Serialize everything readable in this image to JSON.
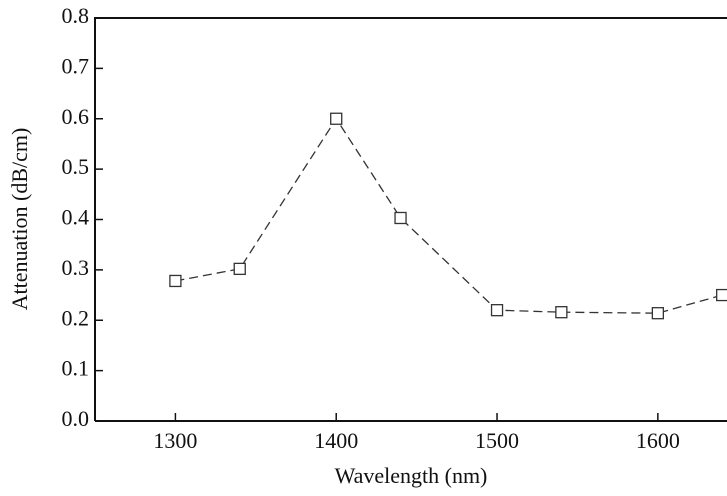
{
  "chart_data": {
    "type": "line",
    "x_label": "Wavelength (nm)",
    "y_label": "Attenuation (dB/cm)",
    "x": [
      1300,
      1340,
      1400,
      1440,
      1500,
      1540,
      1600,
      1640
    ],
    "series": [
      {
        "color": "#333333",
        "values": [
          0.278,
          0.302,
          0.6,
          0.403,
          0.22,
          0.216,
          0.214,
          0.25
        ]
      }
    ],
    "xlim": [
      1250,
      1643
    ],
    "xticks": [
      1300,
      1400,
      1500,
      1600
    ],
    "ylim": [
      0,
      0.8
    ],
    "yticks": [
      {
        "value": 0,
        "label": "0.0"
      },
      0.1,
      0.2,
      0.3,
      0.4,
      0.5,
      0.6,
      0.7,
      0.8
    ],
    "grid": false
  }
}
